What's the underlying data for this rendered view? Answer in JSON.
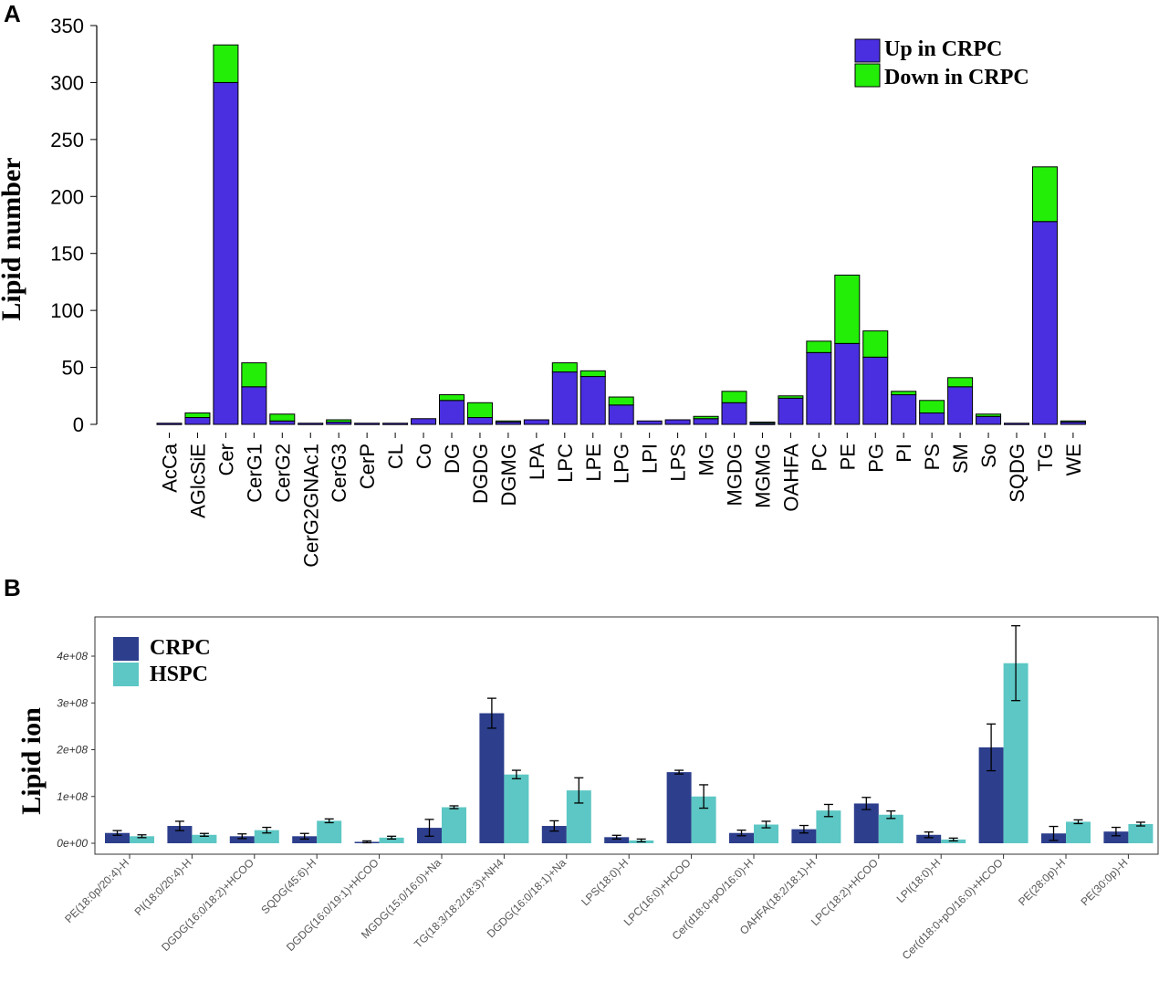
{
  "panels": {
    "a": "A",
    "b": "B"
  },
  "colors": {
    "up": "#4a2fe0",
    "down": "#22ee08",
    "crpc": "#2c3e8c",
    "hspc": "#5cc7c4",
    "border": "#000000"
  },
  "chart_data": [
    {
      "type": "bar",
      "stacked": true,
      "ylabel": "Lipid number",
      "ylim": [
        0,
        350
      ],
      "yticks": [
        0,
        50,
        100,
        150,
        200,
        250,
        300,
        350
      ],
      "legend_position": "top-right",
      "categories": [
        "AcCa",
        "AGlcSiE",
        "Cer",
        "CerG1",
        "CerG2",
        "CerG2GNAc1",
        "CerG3",
        "CerP",
        "CL",
        "Co",
        "DG",
        "DGDG",
        "DGMG",
        "LPA",
        "LPC",
        "LPE",
        "LPG",
        "LPI",
        "LPS",
        "MG",
        "MGDG",
        "MGMG",
        "OAHFA",
        "PC",
        "PE",
        "PG",
        "PI",
        "PS",
        "SM",
        "So",
        "SQDG",
        "TG",
        "WE"
      ],
      "series": [
        {
          "name": "Up in CRPC",
          "values": [
            1,
            6,
            300,
            33,
            3,
            1,
            2,
            1,
            1,
            5,
            21,
            6,
            2,
            4,
            46,
            42,
            17,
            3,
            4,
            5,
            19,
            1,
            23,
            63,
            71,
            59,
            26,
            10,
            33,
            7,
            1,
            178,
            2
          ]
        },
        {
          "name": "Down in CRPC",
          "values": [
            0,
            4,
            33,
            21,
            6,
            0,
            2,
            0,
            0,
            0,
            5,
            13,
            1,
            0,
            8,
            5,
            7,
            0,
            0,
            2,
            10,
            1,
            2,
            10,
            60,
            23,
            3,
            11,
            8,
            2,
            0,
            48,
            1
          ]
        }
      ]
    },
    {
      "type": "bar",
      "ylabel": "Lipid ion",
      "ylim": [
        -20000000.0,
        490000000.0
      ],
      "yticks": [
        0,
        100000000.0,
        200000000.0,
        300000000.0,
        400000000.0
      ],
      "ytick_labels": [
        "0e+00",
        "1e+08",
        "2e+08",
        "3e+08",
        "4e+08"
      ],
      "legend_position": "top-left",
      "categories": [
        "PE(18:0p/20:4)-H",
        "PI(18:0/20:4)-H",
        "DGDG(16:0/18:2)+HCOO",
        "SQDG(45:6)-H",
        "DGDG(16:0/19:1)+HCOO",
        "MGDG(15:0/16:0)+Na",
        "TG(18:3/18:2/18:3)+NH4",
        "DGDG(16:0/18:1)+Na",
        "LPS(18:0)-H",
        "LPC(16:0)+HCOO",
        "Cer(d18:0+pO/16:0)-H",
        "OAHFA(18:2/18:1)-H",
        "LPC(18:2)+HCOO",
        "LPI(18:0)-H",
        "Cer(d18:0+pO/16:0)+HCOO",
        "PE(28:0p)-H",
        "PE(30:0p)-H"
      ],
      "series": [
        {
          "name": "CRPC",
          "values": [
            22000000.0,
            37000000.0,
            15000000.0,
            15000000.0,
            3000000.0,
            33000000.0,
            278000000.0,
            37000000.0,
            13000000.0,
            152000000.0,
            22000000.0,
            30000000.0,
            85000000.0,
            18000000.0,
            205000000.0,
            21000000.0,
            25000000.0
          ],
          "errors": [
            5000000.0,
            10000000.0,
            5000000.0,
            6000000.0,
            2000000.0,
            18000000.0,
            32000000.0,
            11000000.0,
            4000000.0,
            4000000.0,
            6000000.0,
            8000000.0,
            13000000.0,
            6000000.0,
            50000000.0,
            15000000.0,
            9000000.0
          ]
        },
        {
          "name": "HSPC",
          "values": [
            15000000.0,
            18000000.0,
            28000000.0,
            48000000.0,
            12000000.0,
            77000000.0,
            147000000.0,
            113000000.0,
            6000000.0,
            100000000.0,
            40000000.0,
            70000000.0,
            61000000.0,
            8000000.0,
            385000000.0,
            46000000.0,
            41000000.0
          ],
          "errors": [
            3000000.0,
            3000000.0,
            6000000.0,
            4000000.0,
            3000000.0,
            3000000.0,
            9000000.0,
            27000000.0,
            3000000.0,
            25000000.0,
            7000000.0,
            13000000.0,
            8000000.0,
            3000000.0,
            80000000.0,
            4000000.0,
            4000000.0
          ]
        }
      ]
    }
  ]
}
